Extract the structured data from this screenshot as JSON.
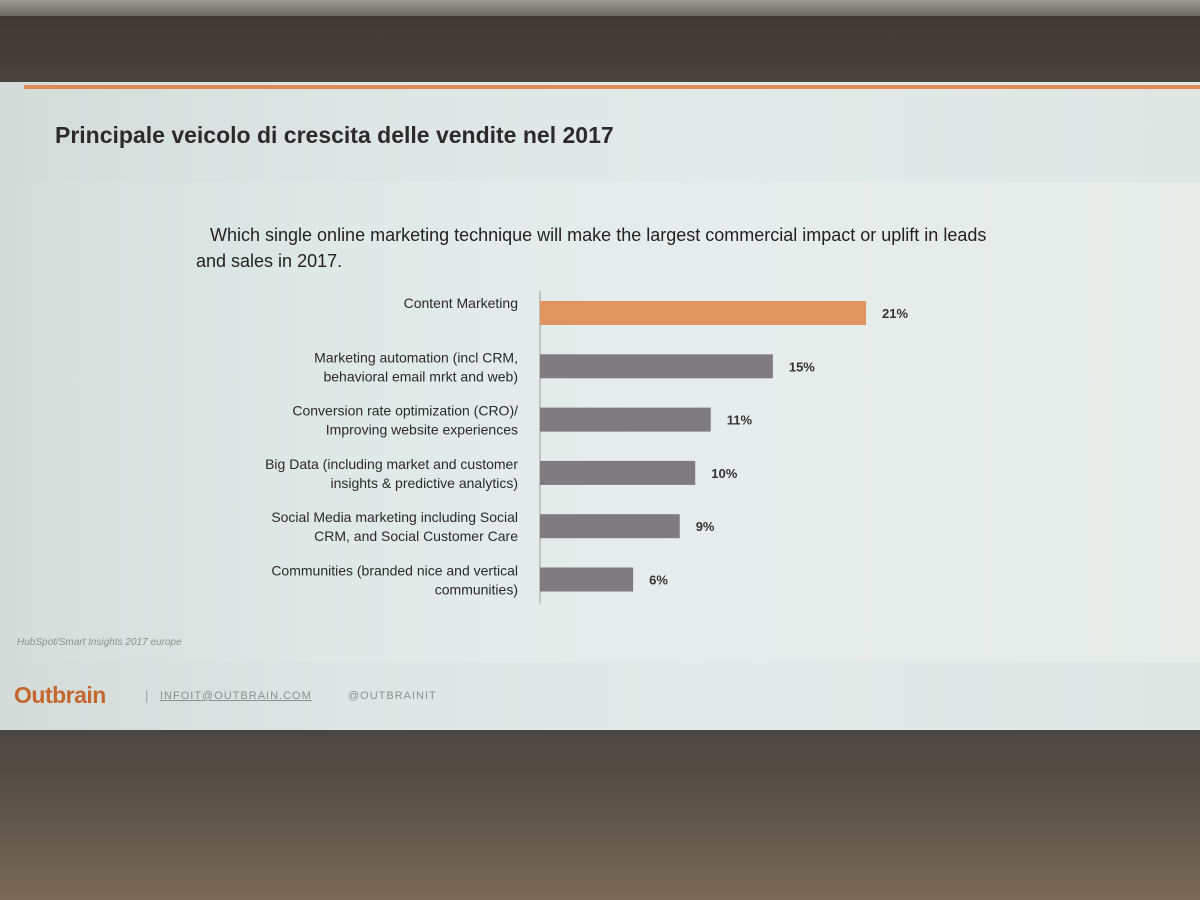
{
  "slide": {
    "title": "Principale veicolo di crescita delle vendite nel 2017",
    "source": "HubSpot/Smart Insights 2017 europe",
    "footer": {
      "logo": "Outbrain",
      "separator": "|",
      "email": "INFOIT@OUTBRAIN.COM",
      "handle": "@OUTBRAINIT"
    }
  },
  "colors": {
    "highlight": "#e0945f",
    "bar": "#807b80",
    "axis": "#9a9a9a"
  },
  "chart_data": {
    "type": "bar",
    "orientation": "horizontal",
    "title": "Which single online marketing technique will make the largest commercial impact or uplift in leads and sales in 2017.",
    "categories": [
      [
        "Content Marketing"
      ],
      [
        "Marketing automation (incl CRM,",
        "behavioral email mrkt and web)"
      ],
      [
        "Conversion rate optimization (CRO)/",
        "Improving website experiences"
      ],
      [
        "Big Data (including market and customer",
        "insights & predictive analytics)"
      ],
      [
        "Social Media marketing including Social",
        "CRM, and Social Customer Care"
      ],
      [
        "Communities (branded nice and vertical",
        "communities)"
      ]
    ],
    "values": [
      21,
      15,
      11,
      10,
      9,
      6
    ],
    "value_labels": [
      "21%",
      "15%",
      "11%",
      "10%",
      "9%",
      "6%"
    ],
    "highlight_index": 0,
    "xlim": [
      0,
      21
    ],
    "grid": false,
    "legend": "none"
  }
}
